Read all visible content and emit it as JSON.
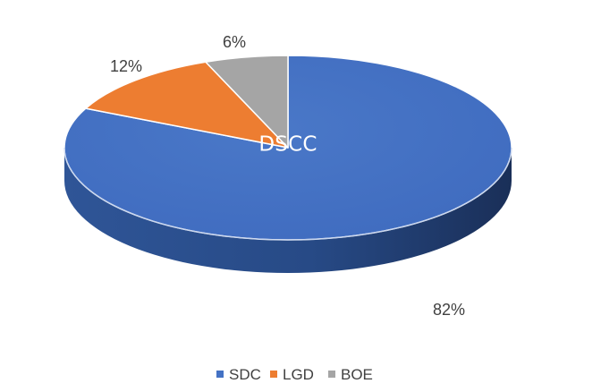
{
  "chart_data": {
    "type": "pie",
    "style": "3d",
    "center_label": "DSCC",
    "slices": [
      {
        "name": "SDC",
        "value": 82,
        "label": "82%",
        "color": "#4472C4",
        "side_color": "#2D4F8F"
      },
      {
        "name": "LGD",
        "value": 12,
        "label": "12%",
        "color": "#ED7D31",
        "side_color": "#B35A1E"
      },
      {
        "name": "BOE",
        "value": 6,
        "label": "6%",
        "color": "#A5A5A5",
        "side_color": "#7A7A7A"
      }
    ],
    "legend": {
      "position": "bottom",
      "entries": [
        "SDC",
        "LGD",
        "BOE"
      ]
    }
  }
}
